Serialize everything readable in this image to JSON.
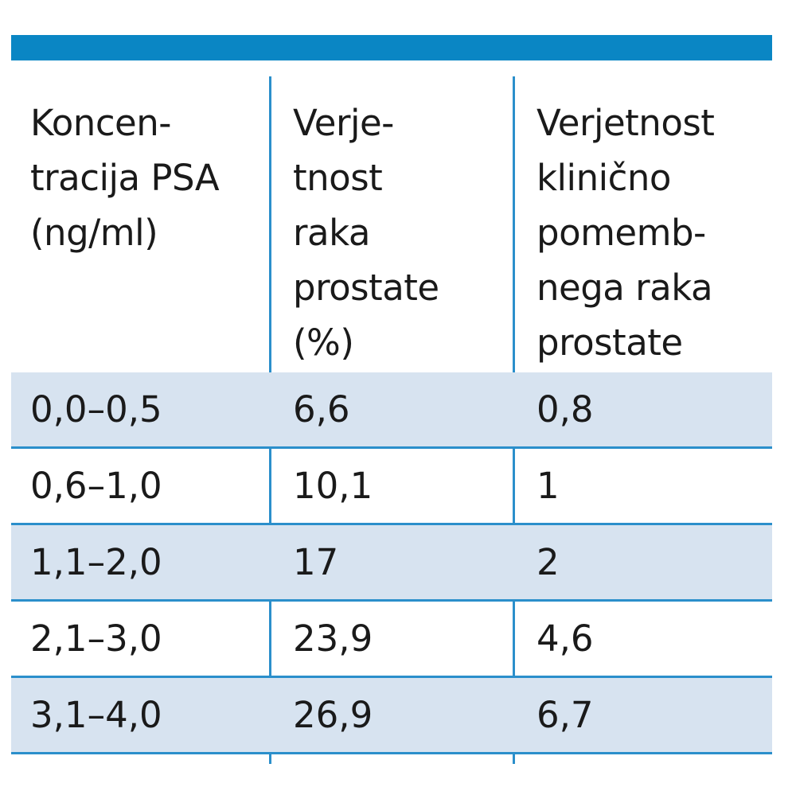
{
  "table": {
    "headers": [
      "Koncen-\ntracija PSA\n(ng/ml)",
      "Verje-\ntnost\nraka\nprostate\n(%)",
      "Verjetnost\nklinično\npomemb-\nnega raka\nprostate"
    ],
    "rows": [
      {
        "psa": "0,0–0,5",
        "risk": "6,6",
        "clinical_risk": "0,8"
      },
      {
        "psa": "0,6–1,0",
        "risk": "10,1",
        "clinical_risk": "1"
      },
      {
        "psa": "1,1–2,0",
        "risk": "17",
        "clinical_risk": "2"
      },
      {
        "psa": "2,1–3,0",
        "risk": "23,9",
        "clinical_risk": "4,6"
      },
      {
        "psa": "3,1–4,0",
        "risk": "26,9",
        "clinical_risk": "6,7"
      }
    ]
  },
  "colors": {
    "accent": "#0a86c4",
    "rule": "#2b8fcb",
    "shade": "#d7e3f0"
  }
}
